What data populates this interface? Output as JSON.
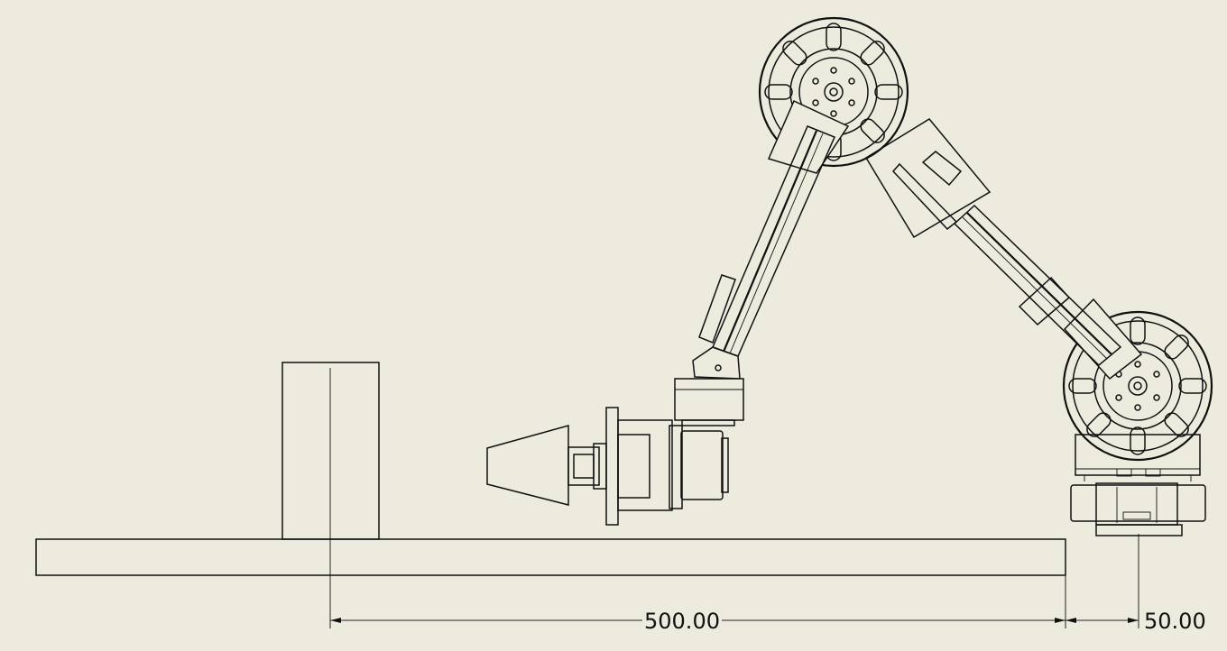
{
  "dimensions": {
    "main": "500.00",
    "offset": "50.00"
  },
  "colors": {
    "background": "#ecebde",
    "line": "#111111"
  }
}
